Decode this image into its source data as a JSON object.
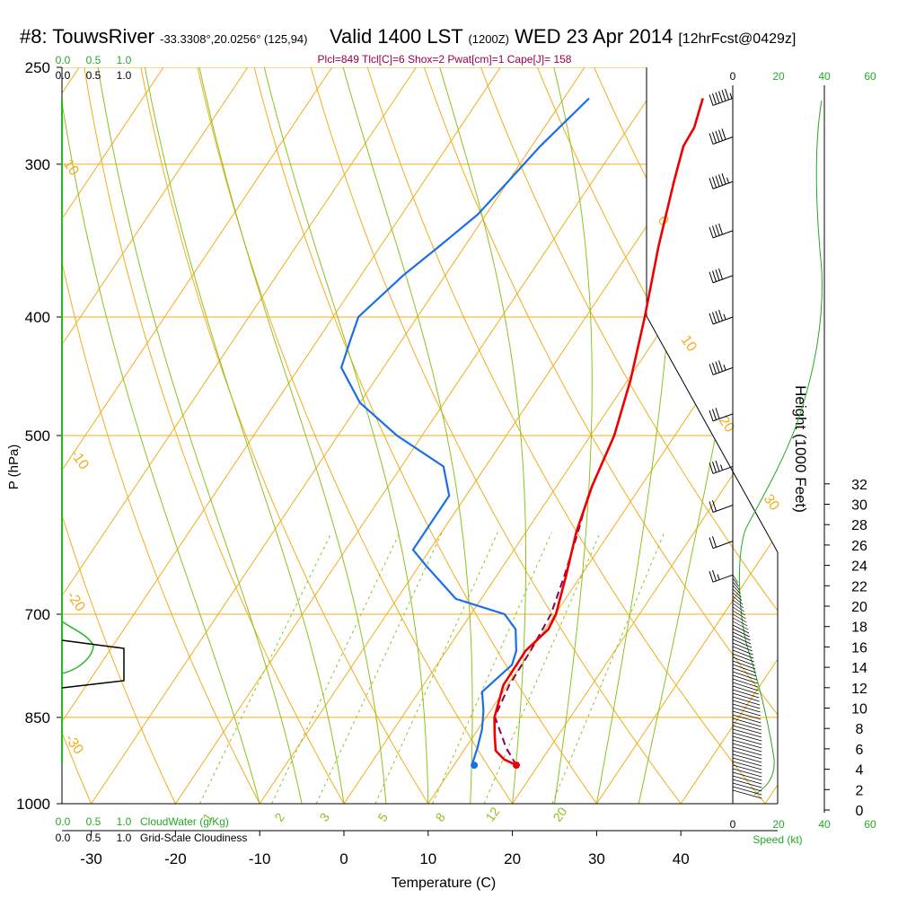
{
  "title": {
    "station": "#8: TouwsRiver",
    "coords": "-33.3308°,20.0256° (125,94)",
    "valid": "Valid 1400 LST",
    "zulu": "(1200Z)",
    "date": "WED 23 Apr 2014",
    "forecast": "[12hrFcst@0429z]"
  },
  "indices_line": "Plcl=849 Tlcl[C]=6 Shox=2 Pwat[cm]=1 Cape[J]= 158",
  "colors": {
    "isotherm": "#f2ad1c",
    "dry_adiabat": "#f2ad1c",
    "moist_adiabat": "#8cc21e",
    "mixing_ratio": "#8cc21e",
    "temperature": "#ee0000",
    "dewpoint": "#1a6fe6",
    "parcel": "#8b0058",
    "green_text": "#22aa22",
    "maroon_text": "#99004d"
  },
  "chart_data": {
    "type": "skew-t log-p sounding",
    "xlabel": "Temperature (C)",
    "ylabel": "P (hPa)",
    "right_axis_label": "Height (1000 Feet)",
    "x_ticks": [
      "-30",
      "-20",
      "-10",
      "0",
      "10",
      "20",
      "30",
      "40"
    ],
    "p_ticks": [
      "250",
      "300",
      "400",
      "500",
      "700",
      "850",
      "1000"
    ],
    "height_ticks": [
      "0",
      "2",
      "4",
      "6",
      "8",
      "10",
      "12",
      "14",
      "16",
      "18",
      "20",
      "22",
      "24",
      "26",
      "28",
      "30",
      "32"
    ],
    "xlim": [
      -34,
      36
    ],
    "plim": [
      1000,
      250
    ],
    "surface_pressure": 930,
    "temperature_profile": [
      {
        "p": 930,
        "t": 17.4
      },
      {
        "p": 920,
        "t": 15.5
      },
      {
        "p": 905,
        "t": 13.8
      },
      {
        "p": 880,
        "t": 12.5
      },
      {
        "p": 850,
        "t": 11.0
      },
      {
        "p": 800,
        "t": 9.5
      },
      {
        "p": 750,
        "t": 9.4
      },
      {
        "p": 720,
        "t": 10.4
      },
      {
        "p": 700,
        "t": 10.1
      },
      {
        "p": 650,
        "t": 8.2
      },
      {
        "p": 600,
        "t": 6.0
      },
      {
        "p": 550,
        "t": 4.2
      },
      {
        "p": 500,
        "t": 2.8
      },
      {
        "p": 450,
        "t": 0.3
      },
      {
        "p": 400,
        "t": -3.0
      },
      {
        "p": 350,
        "t": -7.0
      },
      {
        "p": 310,
        "t": -10.3
      },
      {
        "p": 290,
        "t": -12.0
      },
      {
        "p": 280,
        "t": -12.2
      },
      {
        "p": 265,
        "t": -13.5
      }
    ],
    "dewpoint_profile": [
      {
        "p": 930,
        "t": 12.4
      },
      {
        "p": 925,
        "t": 12.0
      },
      {
        "p": 900,
        "t": 11.4
      },
      {
        "p": 870,
        "t": 10.5
      },
      {
        "p": 840,
        "t": 9.2
      },
      {
        "p": 810,
        "t": 7.5
      },
      {
        "p": 790,
        "t": 8.2
      },
      {
        "p": 770,
        "t": 8.9
      },
      {
        "p": 750,
        "t": 8.3
      },
      {
        "p": 720,
        "t": 6.5
      },
      {
        "p": 700,
        "t": 4.0
      },
      {
        "p": 680,
        "t": -3.0
      },
      {
        "p": 640,
        "t": -9.0
      },
      {
        "p": 620,
        "t": -12.0
      },
      {
        "p": 600,
        "t": -12.0
      },
      {
        "p": 560,
        "t": -12.0
      },
      {
        "p": 530,
        "t": -15.0
      },
      {
        "p": 500,
        "t": -23.0
      },
      {
        "p": 470,
        "t": -30.0
      },
      {
        "p": 440,
        "t": -35.0
      },
      {
        "p": 420,
        "t": -36.0
      },
      {
        "p": 400,
        "t": -37.0
      },
      {
        "p": 370,
        "t": -35.0
      },
      {
        "p": 350,
        "t": -33.0
      },
      {
        "p": 330,
        "t": -31.0
      },
      {
        "p": 310,
        "t": -30.0
      },
      {
        "p": 290,
        "t": -29.0
      },
      {
        "p": 265,
        "t": -27.0
      }
    ],
    "parcel_profile": [
      {
        "p": 930,
        "t": 17.4
      },
      {
        "p": 900,
        "t": 14.8
      },
      {
        "p": 849,
        "t": 11.0
      },
      {
        "p": 800,
        "t": 10.2
      },
      {
        "p": 750,
        "t": 10.0
      },
      {
        "p": 700,
        "t": 9.5
      },
      {
        "p": 650,
        "t": 8.0
      },
      {
        "p": 600,
        "t": 6.2
      },
      {
        "p": 560,
        "t": 4.5
      }
    ],
    "isotherm_labels": [
      "10",
      "0",
      "-10",
      "-20",
      "-30",
      "0",
      "10",
      "20",
      "30"
    ],
    "mixing_ratio_labels": [
      "1",
      "2",
      "3",
      "5",
      "8",
      "12",
      "20"
    ],
    "cloudwater_axis": {
      "label": "CloudWater (g/Kg)",
      "ticks": [
        "0.0",
        "0.5",
        "1.0"
      ]
    },
    "cloudiness_axis": {
      "label": "Grid-Scale Cloudiness",
      "ticks": [
        "0.0",
        "0.5",
        "1.0"
      ]
    },
    "wind_speed_axis": {
      "label": "Speed (kt)",
      "ticks": [
        "0",
        "20",
        "40",
        "60"
      ]
    },
    "wind_profile": [
      {
        "p": 265,
        "dir": 285,
        "spd": 55
      },
      {
        "p": 285,
        "dir": 285,
        "spd": 50
      },
      {
        "p": 310,
        "dir": 285,
        "spd": 45
      },
      {
        "p": 340,
        "dir": 285,
        "spd": 40
      },
      {
        "p": 370,
        "dir": 285,
        "spd": 40
      },
      {
        "p": 400,
        "dir": 285,
        "spd": 35
      },
      {
        "p": 440,
        "dir": 285,
        "spd": 35
      },
      {
        "p": 480,
        "dir": 285,
        "spd": 30
      },
      {
        "p": 530,
        "dir": 285,
        "spd": 25
      },
      {
        "p": 570,
        "dir": 285,
        "spd": 20
      },
      {
        "p": 610,
        "dir": 285,
        "spd": 20
      },
      {
        "p": 650,
        "dir": 285,
        "spd": 15
      }
    ]
  }
}
